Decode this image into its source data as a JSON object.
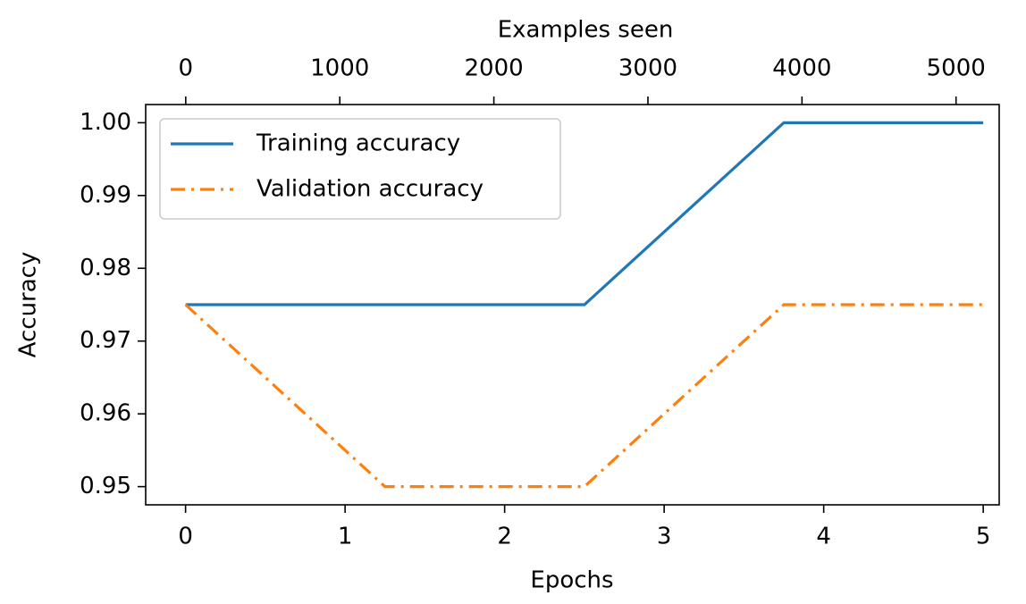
{
  "chart_data": {
    "type": "line",
    "xlabel": "Epochs",
    "ylabel": "Accuracy",
    "x2label": "Examples seen",
    "x": [
      0,
      1.25,
      2.5,
      3.75,
      5
    ],
    "series": [
      {
        "name": "Training accuracy",
        "color": "#1f77b4",
        "linestyle": "solid",
        "values": [
          0.975,
          0.975,
          0.975,
          1.0,
          1.0
        ]
      },
      {
        "name": "Validation accuracy",
        "color": "#ff7f0e",
        "linestyle": "dashdot",
        "values": [
          0.975,
          0.95,
          0.95,
          0.975,
          0.975
        ]
      }
    ],
    "xlim": [
      -0.25,
      5.1
    ],
    "xticks": [
      0,
      1,
      2,
      3,
      4,
      5
    ],
    "x2lim": [
      -260,
      5280
    ],
    "x2ticks": [
      0,
      1000,
      2000,
      3000,
      4000,
      5000
    ],
    "ylim": [
      0.9475,
      1.0025
    ],
    "yticks": [
      0.95,
      0.96,
      0.97,
      0.98,
      0.99,
      {
        "value": 1.0,
        "label": "1.00"
      }
    ],
    "legend": "upper left"
  }
}
